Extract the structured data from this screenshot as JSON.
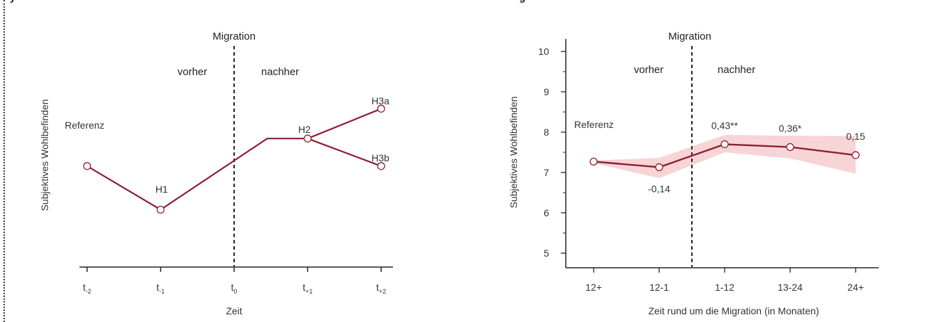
{
  "colors": {
    "line": "#8b1e32",
    "band": "#f7d4d6",
    "axis": "#222222",
    "text": "#333333"
  },
  "headings": {
    "left": "y",
    "right": "g"
  },
  "chart_data": [
    {
      "type": "line",
      "title": "",
      "xlabel": "Zeit",
      "ylabel": "Subjektives Wohlbefinden",
      "categories": [
        "t-2",
        "t-1",
        "t0",
        "t+1",
        "t+2"
      ],
      "tick_labels": [
        {
          "base": "t",
          "sub": "-2"
        },
        {
          "base": "t",
          "sub": "-1"
        },
        {
          "base": "t",
          "sub": "0"
        },
        {
          "base": "t",
          "sub": "+1"
        },
        {
          "base": "t",
          "sub": "+2"
        }
      ],
      "x_range": [
        -0.05,
        4.2
      ],
      "y_range": [
        0,
        10
      ],
      "series": [
        {
          "x": [
            0,
            1,
            2.45,
            3,
            4
          ],
          "y": [
            4.4,
            2.5,
            5.6,
            5.6,
            6.9
          ]
        },
        {
          "x": [
            3,
            4
          ],
          "y": [
            5.6,
            4.4
          ]
        }
      ],
      "markers": [
        {
          "x": 0,
          "y": 4.4
        },
        {
          "x": 1,
          "y": 2.5
        },
        {
          "x": 3,
          "y": 5.6
        },
        {
          "x": 4,
          "y": 6.9
        },
        {
          "x": 4,
          "y": 4.4
        }
      ],
      "divider_x": 2,
      "labels": {
        "migration": "Migration",
        "before": "vorher",
        "after": "nachher",
        "reference": "Referenz",
        "h1": "H1",
        "h2": "H2",
        "h3a": "H3a",
        "h3b": "H3b"
      }
    },
    {
      "type": "line",
      "title": "",
      "xlabel": "Zeit rund um die Migration (in Monaten)",
      "ylabel": "Subjektives Wohlbefinden",
      "categories": [
        "12+",
        "12-1",
        "1-12",
        "13-24",
        "24+"
      ],
      "yticks": [
        5,
        6,
        7,
        8,
        9,
        10
      ],
      "ylim": [
        4.5,
        10.2
      ],
      "series": [
        {
          "values": [
            7.27,
            7.13,
            7.7,
            7.63,
            7.43
          ],
          "ci_upper": [
            7.3,
            7.36,
            7.93,
            7.91,
            7.9
          ],
          "ci_lower": [
            7.23,
            6.86,
            7.5,
            7.35,
            6.97
          ]
        }
      ],
      "divider_x": 1.5,
      "labels": {
        "migration": "Migration",
        "before": "vorher",
        "after": "nachher",
        "reference": "Referenz"
      },
      "data_labels": [
        "-0,14",
        "0,43**",
        "0,36*",
        "0,15"
      ]
    }
  ]
}
